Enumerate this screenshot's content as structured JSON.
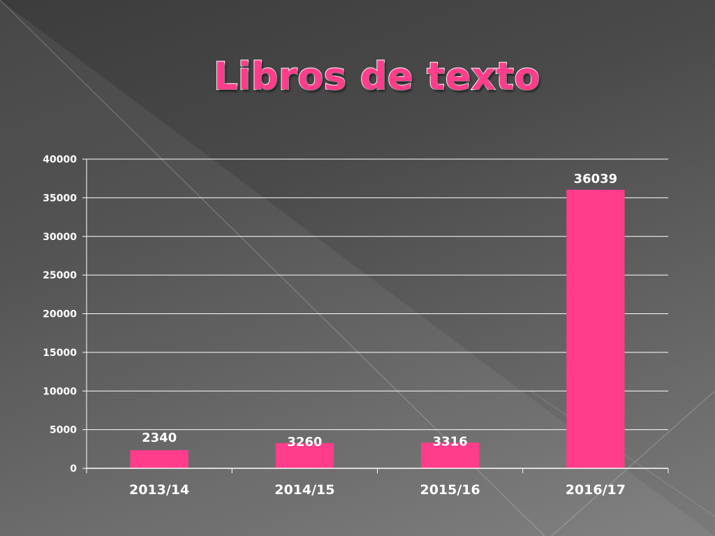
{
  "slide": {
    "title": "Libros de texto"
  },
  "colors": {
    "bar": "#ff3d8a",
    "title_fill": "#ff3d8a",
    "title_outline": "#ffffff",
    "gridline": "#ffffff",
    "text": "#ffffff"
  },
  "chart_data": {
    "type": "bar",
    "title": "",
    "xlabel": "",
    "ylabel": "",
    "categories": [
      "2013/14",
      "2014/15",
      "2015/16",
      "2016/17"
    ],
    "values": [
      2340,
      3260,
      3316,
      36039
    ],
    "data_labels": [
      "2340",
      "3260",
      "3316",
      "36039"
    ],
    "ylim": [
      0,
      40000
    ],
    "yticks": [
      0,
      5000,
      10000,
      15000,
      20000,
      25000,
      30000,
      35000,
      40000
    ],
    "grid": true,
    "legend": "none"
  }
}
